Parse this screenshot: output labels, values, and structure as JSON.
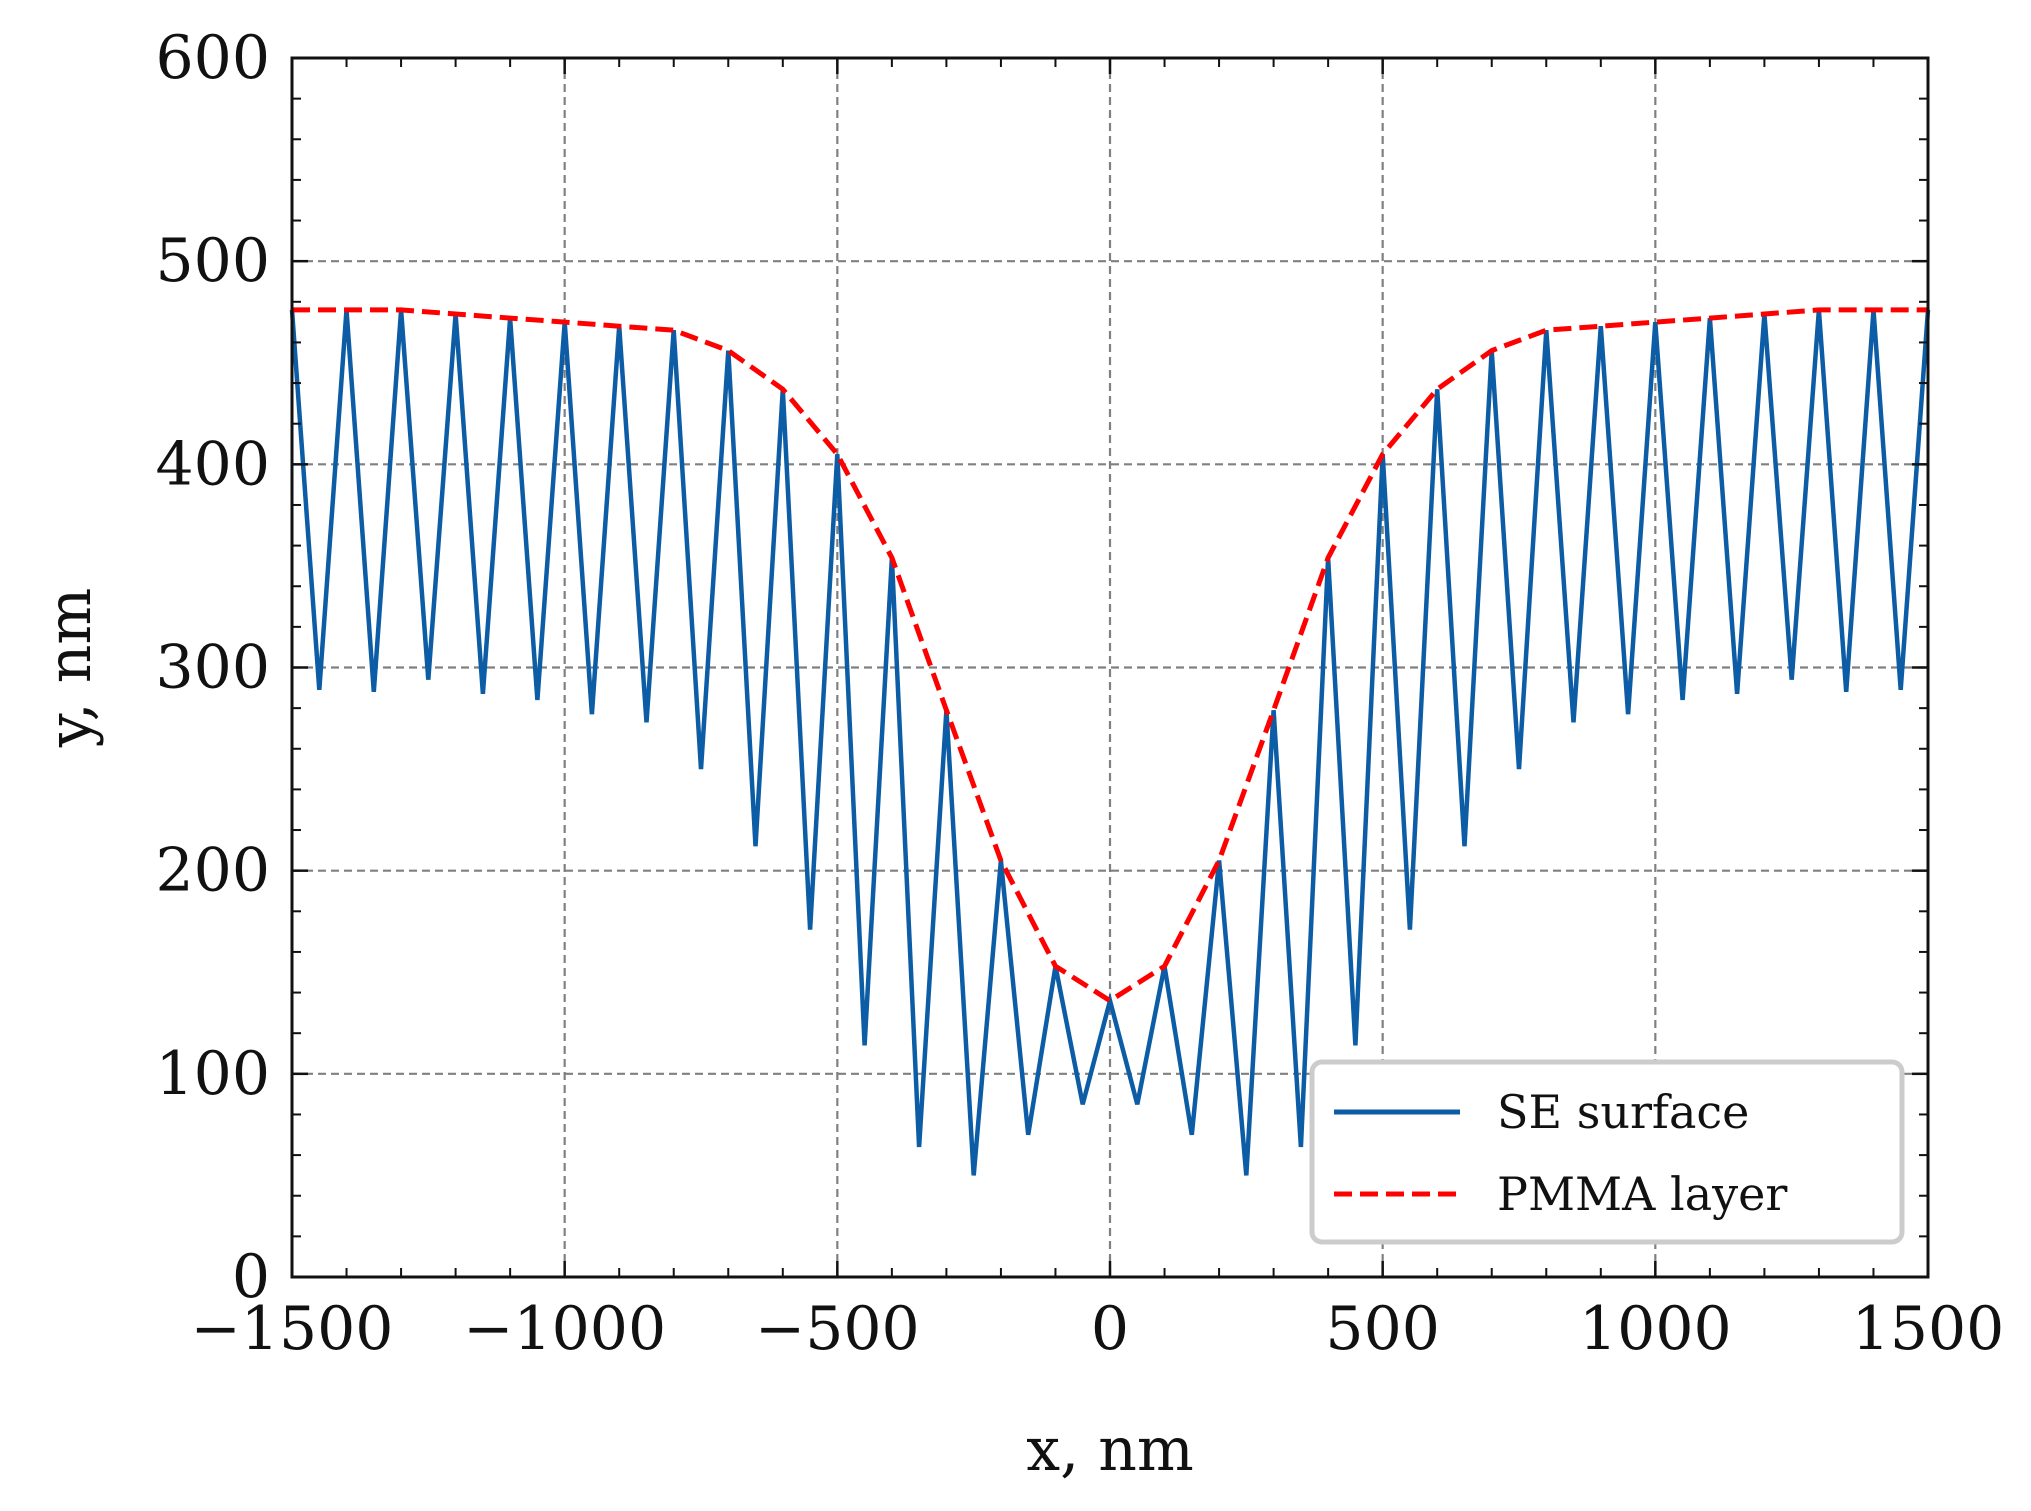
{
  "chart_data": {
    "type": "line",
    "title": "",
    "xlabel": "x, nm",
    "ylabel": "y, nm",
    "xlim": [
      -1500,
      1500
    ],
    "ylim": [
      0,
      600
    ],
    "xticks": [
      -1500,
      -1000,
      -500,
      0,
      500,
      1000,
      1500
    ],
    "xtick_labels": [
      "−1500",
      "−1000",
      "−500",
      "0",
      "500",
      "1000",
      "1500"
    ],
    "yticks": [
      0,
      100,
      200,
      300,
      400,
      500,
      600
    ],
    "ytick_labels": [
      "0",
      "100",
      "200",
      "300",
      "400",
      "500",
      "600"
    ],
    "grid": true,
    "legend_position": "bottom-right",
    "series": [
      {
        "name": "SE surface",
        "color": "#0C5DA5",
        "style": "solid",
        "x": [
          -1500,
          -1450,
          -1400,
          -1350,
          -1300,
          -1250,
          -1200,
          -1150,
          -1100,
          -1050,
          -1000,
          -950,
          -900,
          -850,
          -800,
          -750,
          -700,
          -650,
          -600,
          -550,
          -500,
          -450,
          -400,
          -350,
          -300,
          -250,
          -200,
          -150,
          -100,
          -50,
          0,
          50,
          100,
          150,
          200,
          250,
          300,
          350,
          400,
          450,
          500,
          550,
          600,
          650,
          700,
          750,
          800,
          850,
          900,
          950,
          1000,
          1050,
          1100,
          1150,
          1200,
          1250,
          1300,
          1350,
          1400,
          1450,
          1500
        ],
        "y": [
          476,
          289,
          476,
          288,
          476,
          294,
          474,
          287,
          472,
          284,
          470,
          277,
          468,
          273,
          466,
          250,
          456,
          212,
          437,
          171,
          405,
          114,
          354,
          64,
          279,
          50,
          205,
          70,
          153,
          85,
          136,
          85,
          153,
          70,
          205,
          50,
          279,
          64,
          354,
          114,
          405,
          171,
          437,
          212,
          456,
          250,
          466,
          273,
          468,
          277,
          470,
          284,
          472,
          287,
          474,
          294,
          476,
          288,
          476,
          289,
          476
        ]
      },
      {
        "name": "PMMA layer",
        "color": "#FF0000",
        "style": "dashed",
        "x": [
          -1500,
          -1400,
          -1300,
          -1200,
          -1100,
          -1000,
          -900,
          -800,
          -700,
          -600,
          -500,
          -400,
          -300,
          -200,
          -100,
          0,
          100,
          200,
          300,
          400,
          500,
          600,
          700,
          800,
          900,
          1000,
          1100,
          1200,
          1300,
          1400,
          1500
        ],
        "y": [
          476,
          476,
          476,
          474,
          472,
          470,
          468,
          466,
          456,
          437,
          405,
          354,
          279,
          205,
          153,
          136,
          153,
          205,
          279,
          354,
          405,
          437,
          456,
          466,
          468,
          470,
          472,
          474,
          476,
          476,
          476
        ]
      }
    ]
  }
}
